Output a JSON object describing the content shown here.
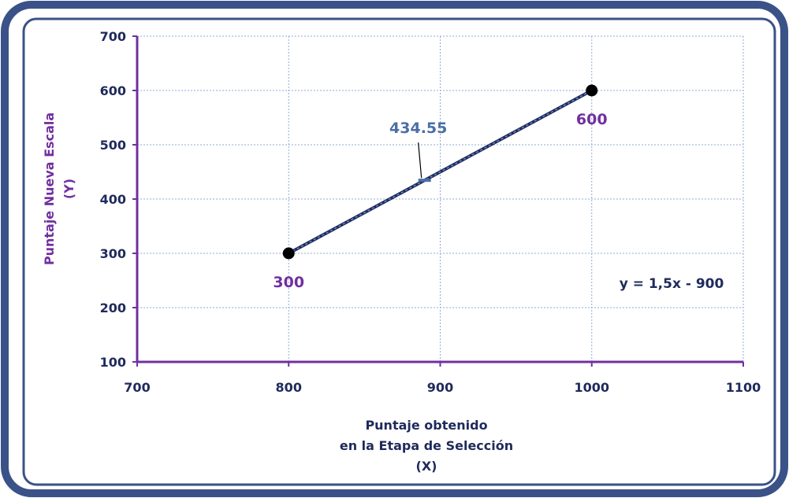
{
  "colors": {
    "frame": "#3a5287",
    "axis": "#7030a0",
    "line": "#1f2a5c",
    "gridline": "#8faadc",
    "point": "#000000",
    "label_purple": "#7030a0",
    "label_blue": "#4a6fa5",
    "tick_text": "#1f2a5c",
    "xlabel_text": "#1f2a5c",
    "ylabel_text": "#7030a0"
  },
  "chart_data": {
    "type": "line",
    "title": "",
    "xlabel": [
      "Puntaje obtenido",
      "en la Etapa de Selección",
      "(X)"
    ],
    "ylabel": [
      "Puntaje Nueva Escala",
      "(Y)"
    ],
    "xlim": [
      700,
      1100
    ],
    "ylim": [
      100,
      700
    ],
    "xticks": [
      "700",
      "800",
      "900",
      "1000",
      "1100"
    ],
    "yticks": [
      "100",
      "200",
      "300",
      "400",
      "500",
      "600",
      "700"
    ],
    "grid": true,
    "equation": "y = 1,5x - 900",
    "series": [
      {
        "points": [
          {
            "x": 800,
            "y": 300,
            "label": "300"
          },
          {
            "x": 1000,
            "y": 600,
            "label": "600"
          }
        ]
      }
    ],
    "annotation": {
      "x": 889.7,
      "y": 434.55,
      "label": "434.55"
    }
  }
}
